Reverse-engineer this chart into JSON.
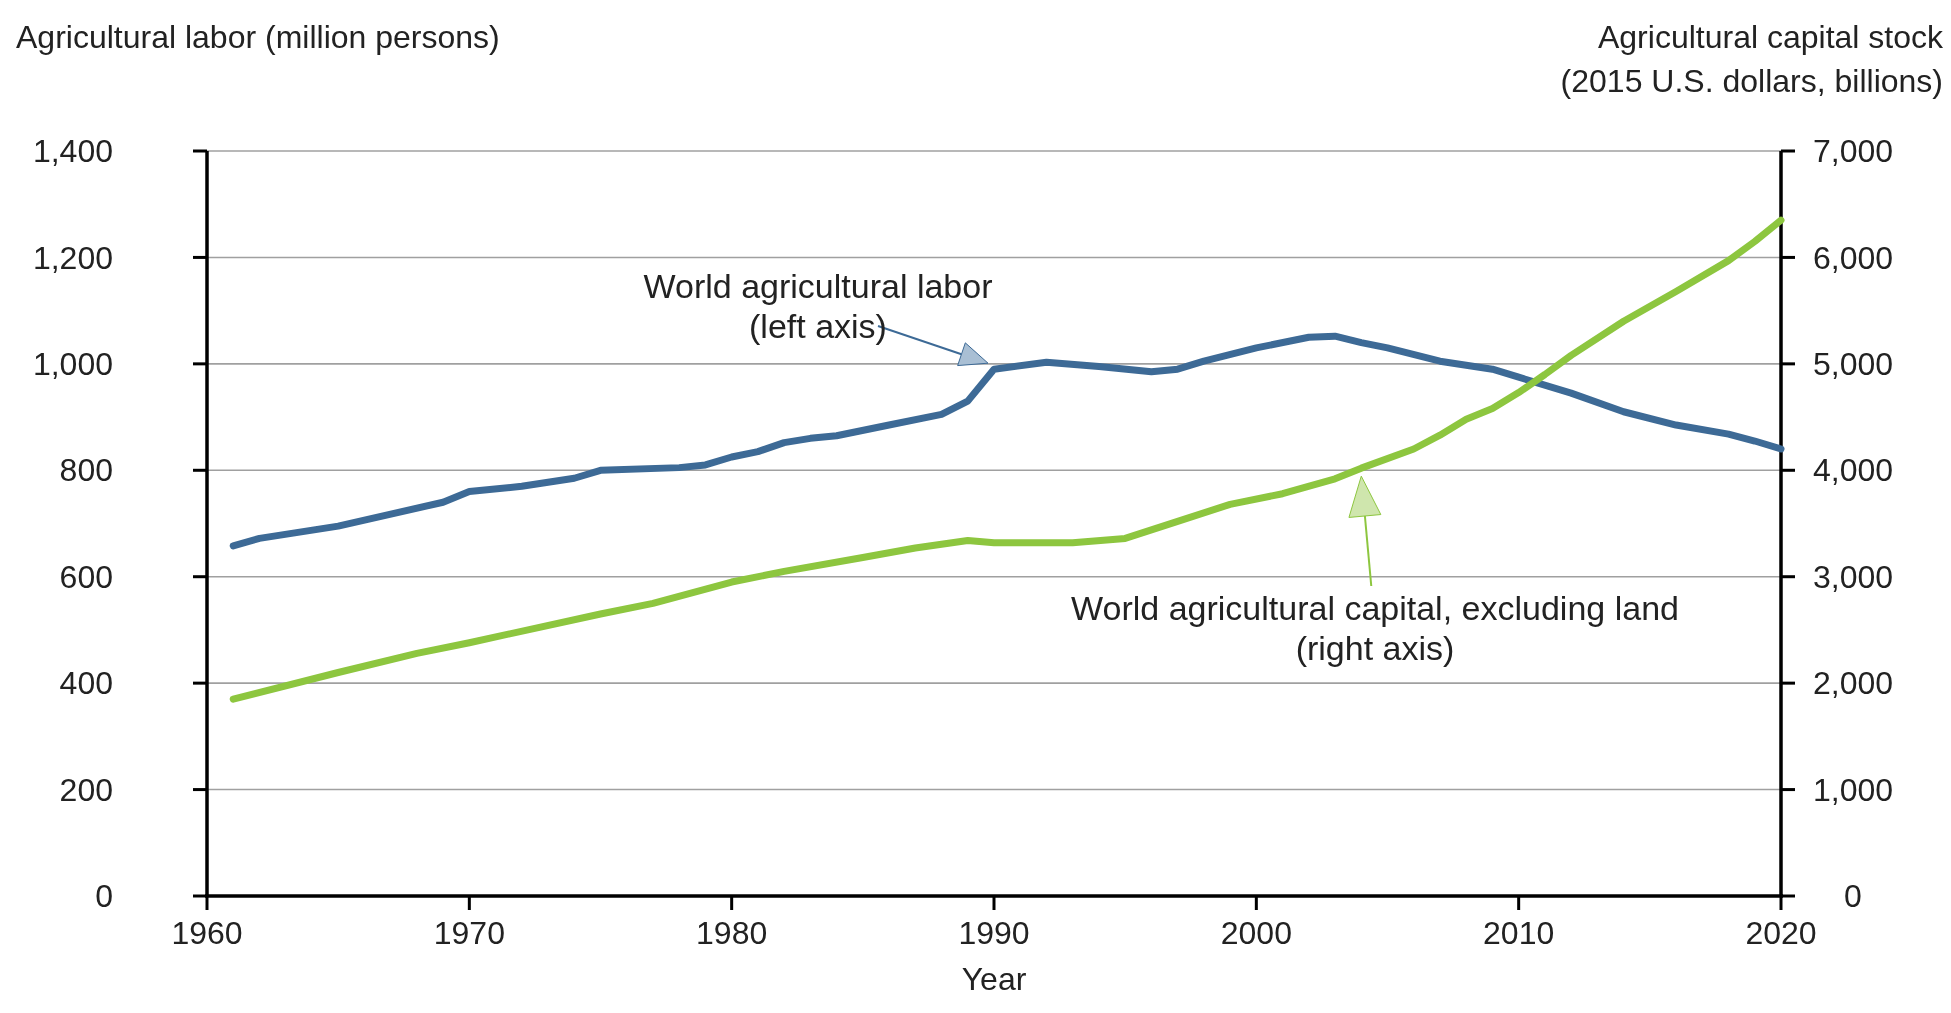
{
  "chart_data": {
    "type": "line",
    "xlabel": "Year",
    "ylabel": "Agricultural labor (million persons)",
    "y2label": "Agricultural capital stock\n(2015 U.S. dollars, billions)",
    "xlim": [
      1960,
      2020
    ],
    "xticks": [
      1960,
      1970,
      1980,
      1990,
      2000,
      2010,
      2020
    ],
    "ylim": [
      0,
      1400
    ],
    "yticks": [
      0,
      200,
      400,
      600,
      800,
      {
        "value": 1000,
        "label": "1,000"
      },
      {
        "value": 1200,
        "label": "1,200"
      },
      {
        "value": 1400,
        "label": "1,400"
      }
    ],
    "y2lim": [
      0,
      7000
    ],
    "y2ticks": [
      0,
      {
        "value": 1000,
        "label": "1,000"
      },
      {
        "value": 2000,
        "label": "2,000"
      },
      {
        "value": 3000,
        "label": "3,000"
      },
      {
        "value": 4000,
        "label": "4,000"
      },
      {
        "value": 5000,
        "label": "5,000"
      },
      {
        "value": 6000,
        "label": "6,000"
      },
      {
        "value": 7000,
        "label": "7,000"
      }
    ],
    "grid": "y",
    "marker": "none",
    "line_style": "solid",
    "annotations": [
      "World agricultural labor\n(left axis)",
      "World agricultural capital, excluding land\n(right axis)"
    ],
    "series": [
      {
        "color": "#3d6a96",
        "x": [
          1961,
          1962,
          1965,
          1969,
          1970,
          1972,
          1974,
          1975,
          1978,
          1979,
          1980,
          1981,
          1982,
          1983,
          1984,
          1986,
          1988,
          1989,
          1990,
          1992,
          1994,
          1996,
          1997,
          1998,
          2000,
          2002,
          2003,
          2004,
          2005,
          2007,
          2009,
          2010,
          2012,
          2014,
          2016,
          2018,
          2019,
          2020
        ],
        "values": [
          658,
          672,
          695,
          740,
          760,
          770,
          785,
          800,
          805,
          810,
          825,
          835,
          852,
          860,
          865,
          885,
          905,
          930,
          990,
          1003,
          995,
          985,
          990,
          1005,
          1030,
          1050,
          1052,
          1040,
          1030,
          1005,
          990,
          975,
          945,
          910,
          885,
          868,
          855,
          840
        ]
      },
      {
        "color": "#8dc63f",
        "axis": "y2",
        "x": [
          1961,
          1965,
          1968,
          1970,
          1975,
          1977,
          1980,
          1982,
          1985,
          1987,
          1989,
          1990,
          1993,
          1995,
          1997,
          1999,
          2001,
          2003,
          2004,
          2006,
          2007,
          2008,
          2009,
          2010,
          2011,
          2012,
          2014,
          2016,
          2018,
          2019,
          2020
        ],
        "values": [
          1850,
          2100,
          2280,
          2380,
          2650,
          2750,
          2950,
          3050,
          3180,
          3270,
          3340,
          3320,
          3320,
          3360,
          3520,
          3680,
          3780,
          3920,
          4020,
          4200,
          4330,
          4480,
          4580,
          4730,
          4900,
          5080,
          5400,
          5680,
          5970,
          6150,
          6350
        ]
      }
    ]
  }
}
